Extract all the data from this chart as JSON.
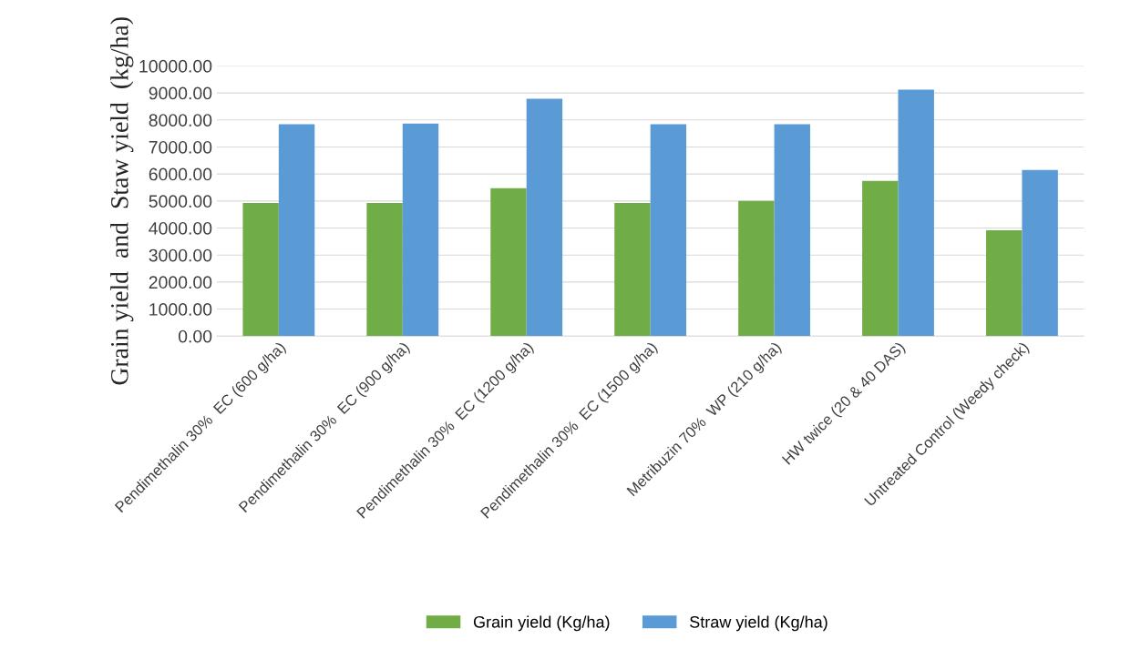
{
  "chart_data": {
    "type": "bar",
    "ylabel": "Grain yield  and  Staw yield  (kg/ha)",
    "categories": [
      "Pendimethalin 30%  EC (600 g/ha)",
      "Pendimethalin 30%  EC (900 g/ha)",
      "Pendimethalin 30%  EC (1200 g/ha)",
      "Pendimethalin 30%  EC (1500 g/ha)",
      "Metribuzin 70%  WP (210 g/ha)",
      "HW twice (20 & 40 DAS)",
      "Untreated Control (Weedy check)"
    ],
    "series": [
      {
        "name": "Grain yield (Kg/ha)",
        "color": "#70ad47",
        "values": [
          4930,
          4930,
          5470,
          4930,
          5000,
          5740,
          3920
        ]
      },
      {
        "name": "Straw yield (Kg/ha)",
        "color": "#5b9bd5",
        "values": [
          7840,
          7870,
          8780,
          7840,
          7840,
          9120,
          6150
        ]
      }
    ],
    "ylim": [
      0,
      10000
    ],
    "yticks": [
      {
        "value": 0,
        "label": "0.00"
      },
      {
        "value": 1000,
        "label": "1000.00"
      },
      {
        "value": 2000,
        "label": "2000.00"
      },
      {
        "value": 3000,
        "label": "3000.00"
      },
      {
        "value": 4000,
        "label": "4000.00"
      },
      {
        "value": 5000,
        "label": "5000.00"
      },
      {
        "value": 6000,
        "label": "6000.00"
      },
      {
        "value": 7000,
        "label": "7000.00"
      },
      {
        "value": 8000,
        "label": "8000.00"
      },
      {
        "value": 9000,
        "label": "9000.00"
      },
      {
        "value": 10000,
        "label": "10000.00"
      }
    ],
    "grid": "y",
    "legend": "bottom"
  }
}
